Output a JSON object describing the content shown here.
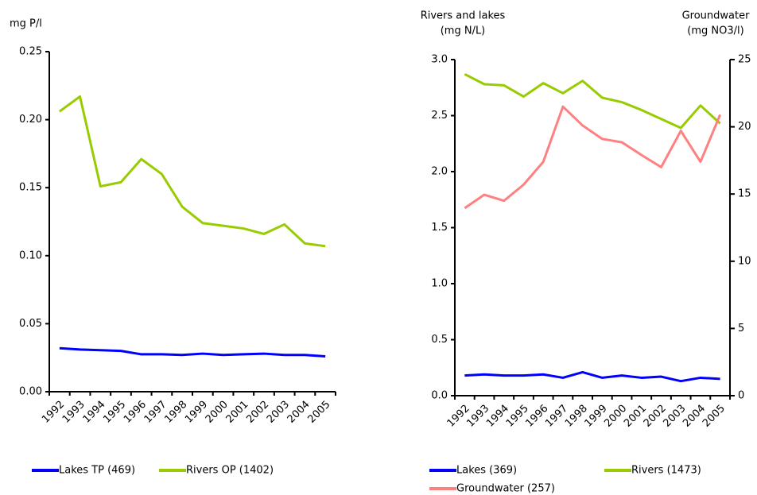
{
  "chart_data": [
    {
      "type": "line",
      "ylabel": "mg P/l",
      "categories": [
        "1992",
        "1993",
        "1994",
        "1995",
        "1996",
        "1997",
        "1998",
        "1999",
        "2000",
        "2001",
        "2002",
        "2003",
        "2004",
        "2005"
      ],
      "series": [
        {
          "name": "Lakes TP (469)",
          "color": "#0000ff",
          "values": [
            0.032,
            0.031,
            0.0305,
            0.03,
            0.0275,
            0.0275,
            0.027,
            0.028,
            0.027,
            0.0275,
            0.028,
            0.027,
            0.027,
            0.026
          ]
        },
        {
          "name": "Rivers OP (1402)",
          "color": "#99cc00",
          "values": [
            0.206,
            0.217,
            0.151,
            0.154,
            0.171,
            0.16,
            0.136,
            0.124,
            0.122,
            0.12,
            0.116,
            0.123,
            0.109,
            0.107
          ]
        }
      ],
      "ylim": [
        0,
        0.25
      ],
      "yticks": [
        {
          "value": 0,
          "label": "0.00"
        },
        {
          "value": 0.05,
          "label": "0.05"
        },
        {
          "value": 0.1,
          "label": "0.10"
        },
        {
          "value": 0.15,
          "label": "0.15"
        },
        {
          "value": 0.2,
          "label": "0.20"
        },
        {
          "value": 0.25,
          "label": "0.25"
        }
      ],
      "grid": false
    },
    {
      "type": "line",
      "ylabel": [
        "Rivers and lakes",
        "(mg N/L)"
      ],
      "y2label": [
        "Groundwater",
        "(mg NO3/l)"
      ],
      "categories": [
        "1992",
        "1993",
        "1994",
        "1995",
        "1996",
        "1997",
        "1998",
        "1999",
        "2000",
        "2001",
        "2002",
        "2003",
        "2004",
        "2005"
      ],
      "series": [
        {
          "name": "Lakes (369)",
          "color": "#0000ff",
          "values": [
            0.18,
            0.19,
            0.18,
            0.18,
            0.19,
            0.16,
            0.21,
            0.16,
            0.18,
            0.16,
            0.17,
            0.13,
            0.16,
            0.15
          ]
        },
        {
          "name": "Rivers (1473)",
          "color": "#99cc00",
          "values": [
            2.87,
            2.78,
            2.77,
            2.67,
            2.79,
            2.7,
            2.81,
            2.66,
            2.62,
            2.55,
            2.47,
            2.39,
            2.59,
            2.43
          ]
        },
        {
          "name": "Groundwater (257)",
          "color": "#ff8080",
          "axis": "y2",
          "values": [
            13.95,
            14.95,
            14.5,
            15.7,
            17.4,
            21.5,
            20.1,
            19.1,
            18.85,
            17.9,
            17.0,
            19.7,
            17.4,
            20.9
          ]
        }
      ],
      "ylim": [
        0,
        3.0
      ],
      "yticks": [
        {
          "value": 0,
          "label": "0.0"
        },
        {
          "value": 0.5,
          "label": "0.5"
        },
        {
          "value": 1,
          "label": "1.0"
        },
        {
          "value": 1.5,
          "label": "1.5"
        },
        {
          "value": 2,
          "label": "2.0"
        },
        {
          "value": 2.5,
          "label": "2.5"
        },
        {
          "value": 3,
          "label": "3.0"
        }
      ],
      "y2lim": [
        0,
        25
      ],
      "y2ticks": [
        0,
        5,
        10,
        15,
        20,
        25
      ],
      "grid": false
    }
  ]
}
